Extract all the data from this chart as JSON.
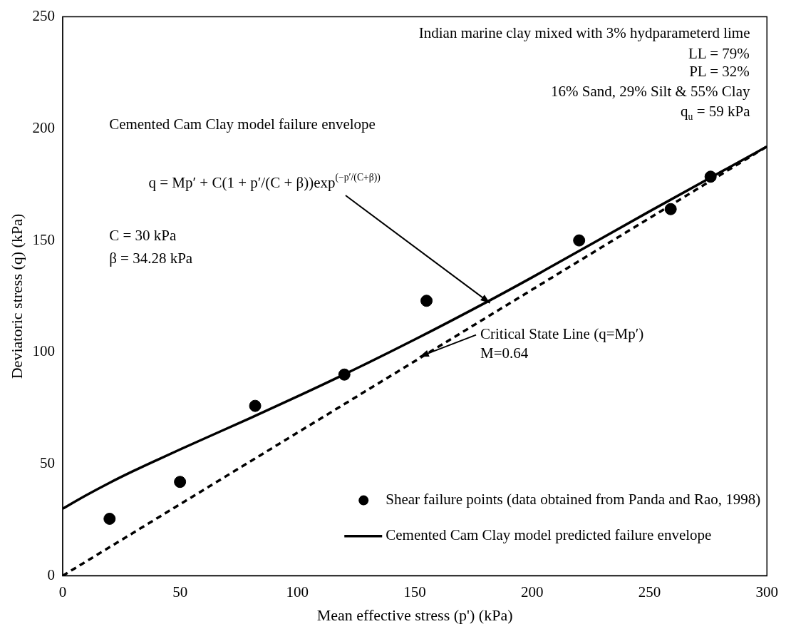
{
  "chart_data": {
    "type": "scatter",
    "xlabel": "Mean effective stress (p') (kPa)",
    "ylabel": "Deviatoric stress (q) (kPa)",
    "xlim": [
      0,
      300
    ],
    "xticks": [
      0,
      50,
      100,
      150,
      200,
      250,
      300
    ],
    "ylim": [
      0,
      250
    ],
    "yticks": [
      0,
      50,
      100,
      150,
      200,
      250
    ],
    "grid": false,
    "legend": "bottom",
    "series": [
      {
        "name": "Shear failure points (data obtained from Panda and Rao, 1998)",
        "marker": "circle",
        "color": "#000000",
        "x": [
          20,
          50,
          82,
          120,
          155,
          220,
          259,
          276
        ],
        "values": [
          25.5,
          42,
          76,
          90,
          123,
          150,
          164,
          178.5
        ]
      },
      {
        "name": "Cemented Cam Clay model predicted failure envelope",
        "type": "line",
        "marker": "none",
        "color": "#000000",
        "line_style": "solid",
        "x": [
          0,
          10,
          20,
          30,
          40,
          50,
          60,
          80,
          100,
          120,
          150,
          180,
          200,
          250,
          300
        ],
        "values": [
          30,
          36,
          41.6,
          46.8,
          51.7,
          56.5,
          61.2,
          70.6,
          80.2,
          90.1,
          105.7,
          122.1,
          133.5,
          163,
          192
        ]
      },
      {
        "type": "line",
        "marker": "none",
        "color": "#000000",
        "line_style": "dashed",
        "x": [
          0,
          300
        ],
        "values": [
          0,
          192
        ]
      }
    ],
    "annotations": [
      "Indian marine clay mixed with 3% hydparameterd lime",
      "LL = 79%",
      "PL = 32%",
      "16% Sand, 29% Silt & 55% Clay",
      "q$_{u}$ = 59 kPa",
      "Cemented Cam Clay model failure envelope",
      {
        "text": "q = Mp′ + C(1 + p′/(C + β))exp$^{(−p′/(C+β))}$",
        "x": 182,
        "y": 122
      },
      "C = 30 kPa",
      "β = 34.28 kPa",
      {
        "text": "Critical State Line (q=Mp′)",
        "x": 152,
        "y": 98
      },
      "M=0.64"
    ]
  }
}
